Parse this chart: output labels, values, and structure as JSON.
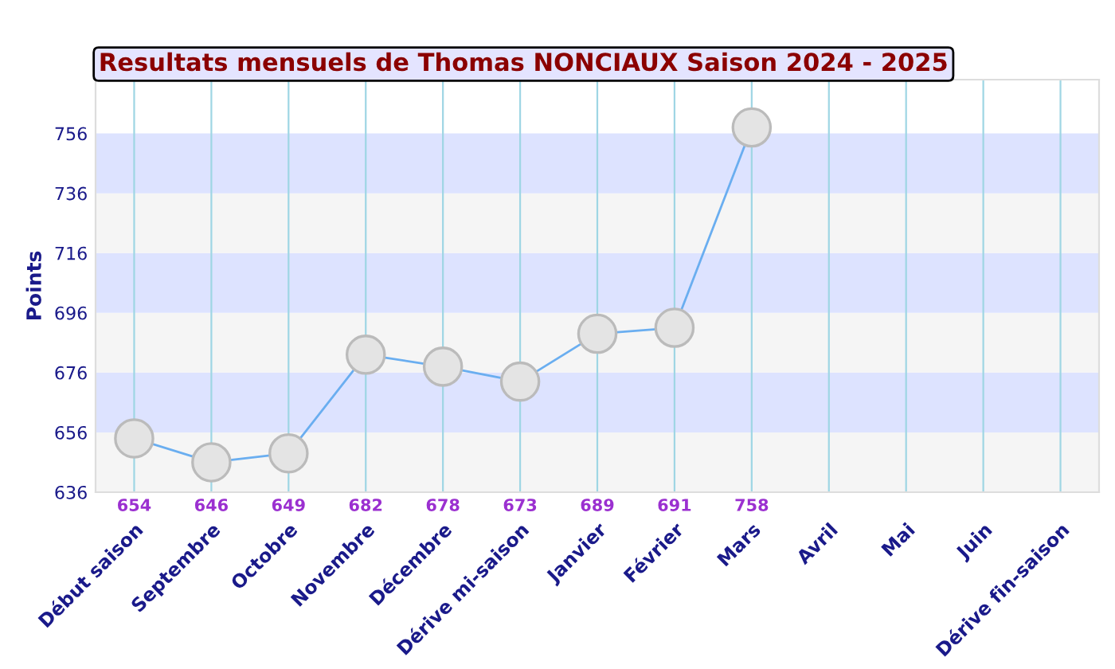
{
  "chart_data": {
    "type": "line",
    "title": "Resultats mensuels de Thomas NONCIAUX Saison 2024 - 2025",
    "ylabel": "Points",
    "categories": [
      "Début saison",
      "Septembre",
      "Octobre",
      "Novembre",
      "Décembre",
      "Dérive mi-saison",
      "Janvier",
      "Février",
      "Mars",
      "Avril",
      "Mai",
      "Juin",
      "Dérive fin-saison"
    ],
    "series": [
      {
        "color": "#6aaef0",
        "values": [
          654,
          646,
          649,
          682,
          678,
          673,
          689,
          691,
          758,
          null,
          null,
          null,
          null
        ]
      }
    ],
    "ylim": [
      636,
      774
    ],
    "yticks": [
      636,
      656,
      676,
      696,
      716,
      736,
      756
    ],
    "bands": [
      {
        "axis": "y",
        "from": 636,
        "to": 656,
        "color": "#f5f5f5"
      },
      {
        "axis": "y",
        "from": 656,
        "to": 676,
        "color": "#dde3ff"
      },
      {
        "axis": "y",
        "from": 676,
        "to": 696,
        "color": "#f5f5f5"
      },
      {
        "axis": "y",
        "from": 696,
        "to": 716,
        "color": "#dde3ff"
      },
      {
        "axis": "y",
        "from": 716,
        "to": 736,
        "color": "#f5f5f5"
      },
      {
        "axis": "y",
        "from": 736,
        "to": 756,
        "color": "#dde3ff"
      }
    ],
    "grid": "x",
    "marker": "circle",
    "line_style": "solid",
    "data_labels": true
  }
}
